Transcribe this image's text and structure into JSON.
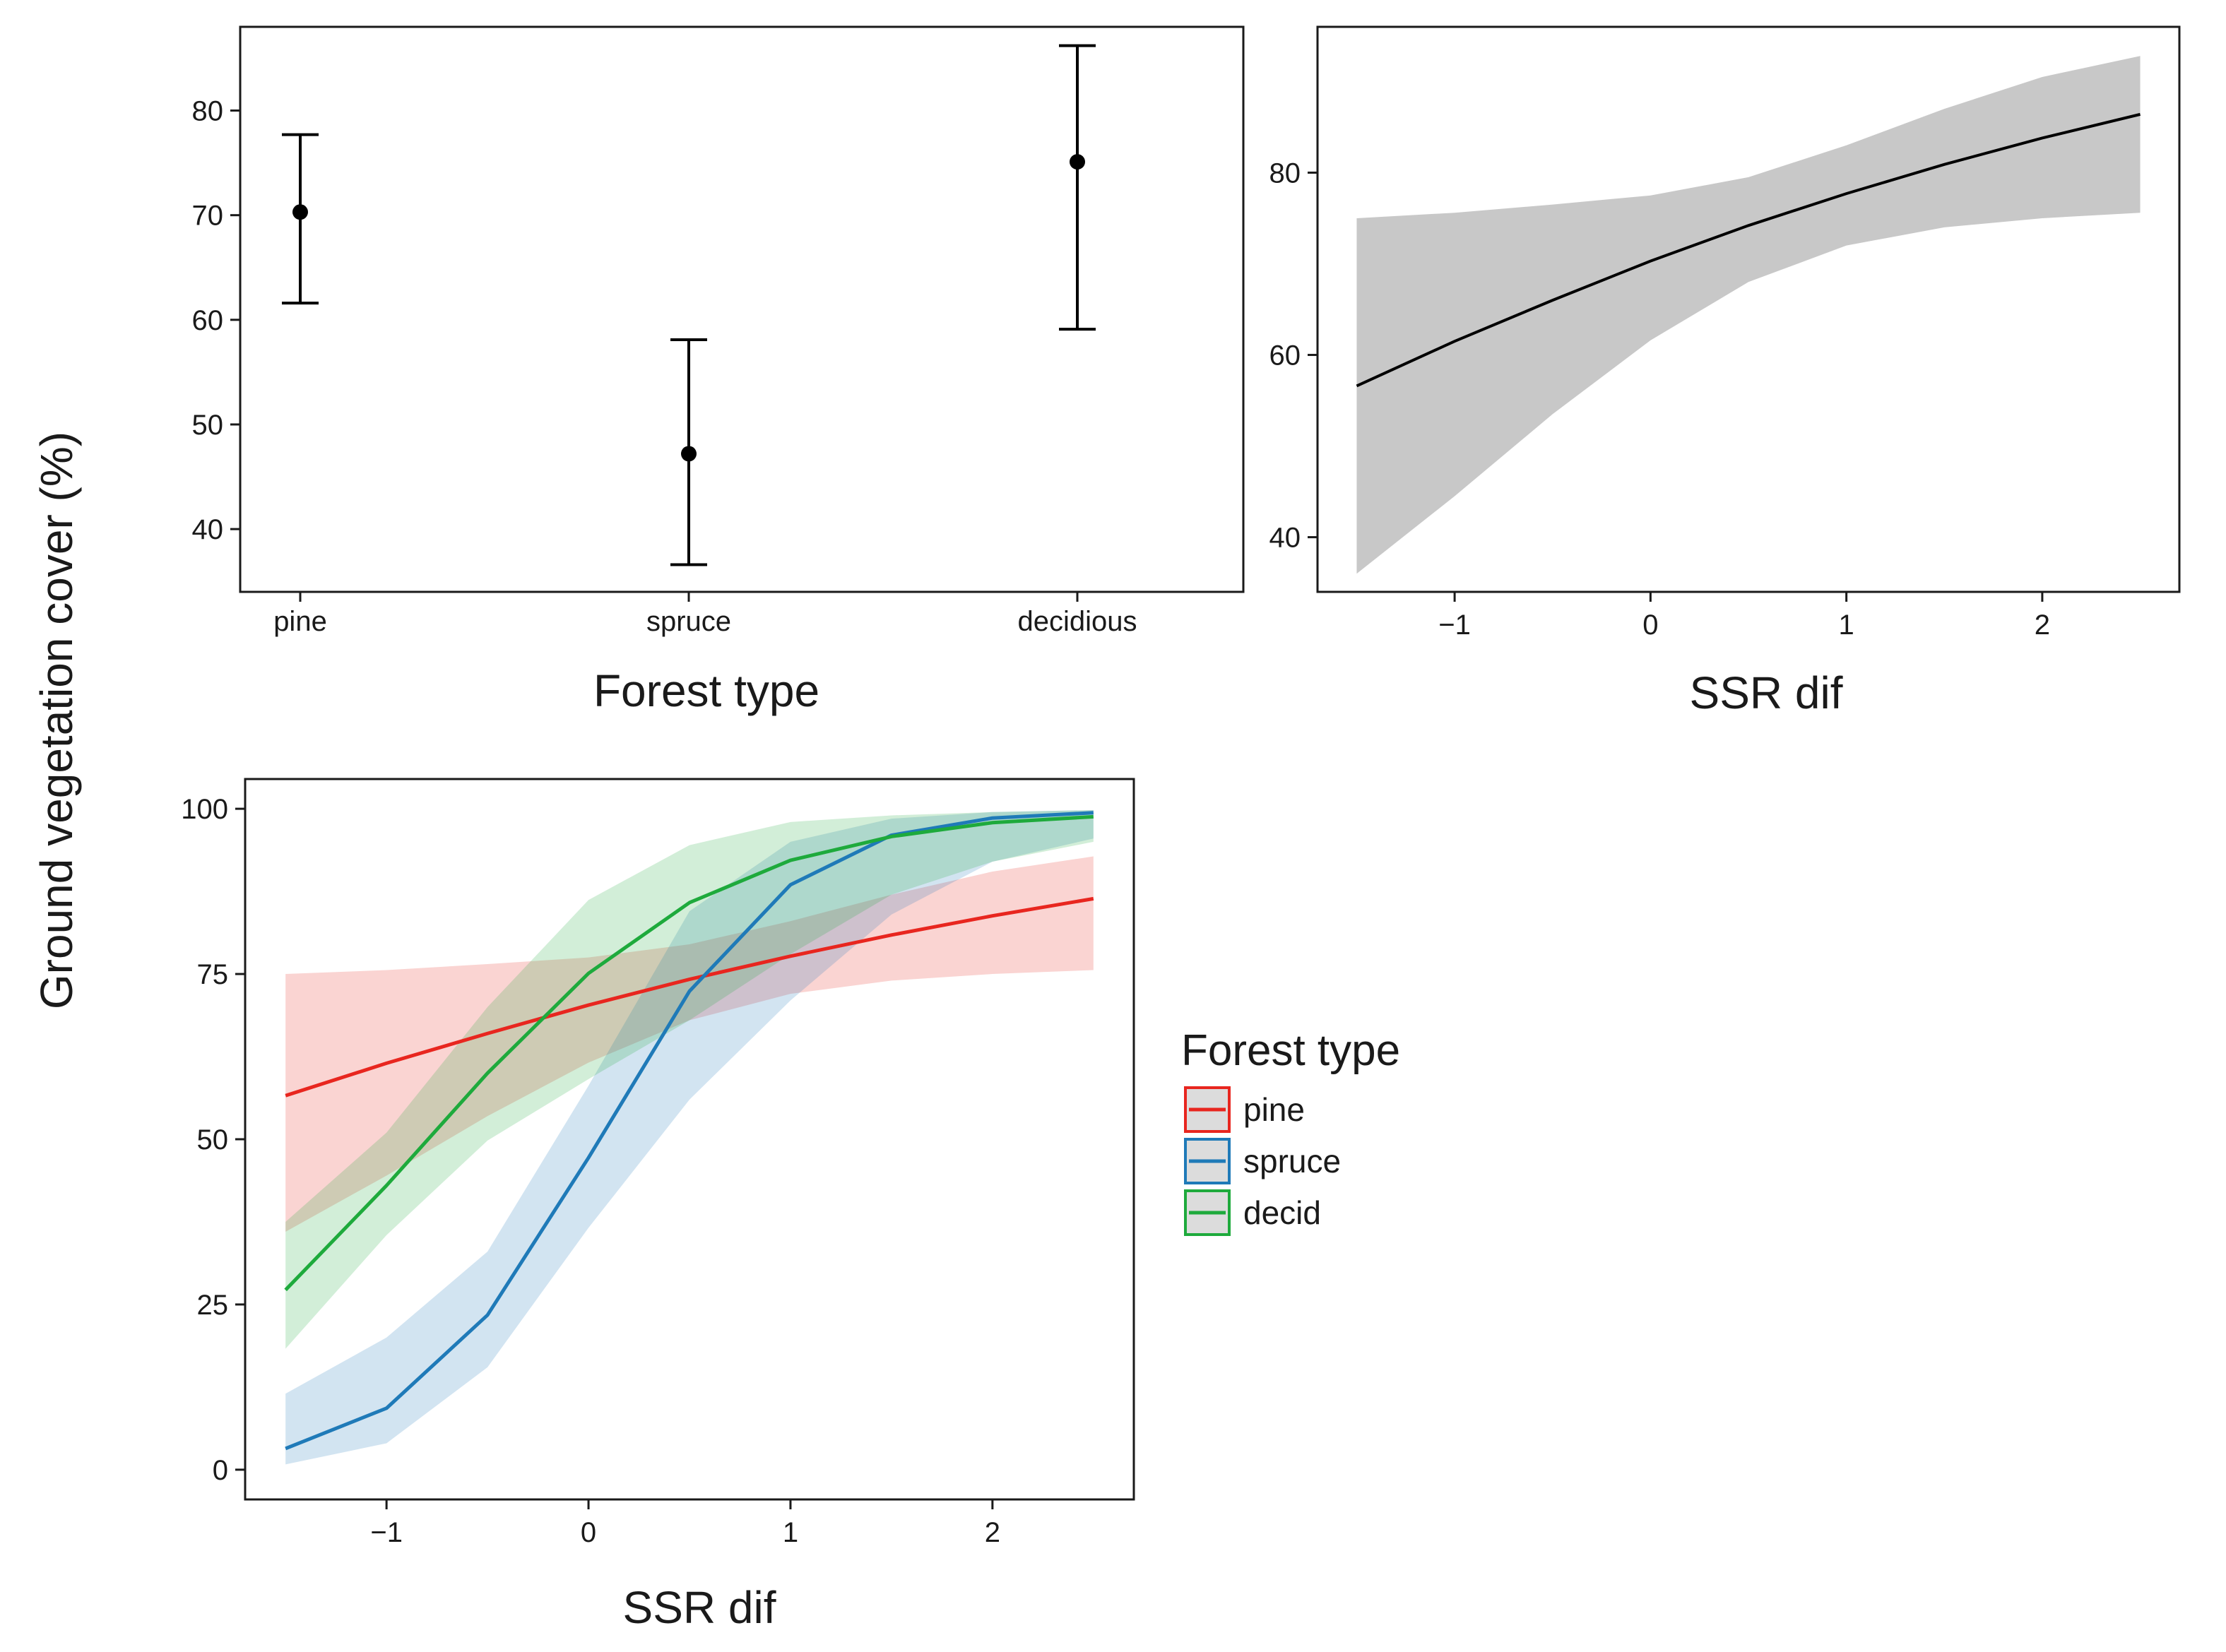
{
  "shared_ylabel": "Ground vegetation cover (%)",
  "chart_data": [
    {
      "id": "a",
      "type": "errorbar",
      "categories": [
        "pine",
        "spruce",
        "decidious"
      ],
      "values": [
        70.3,
        47.2,
        75.1
      ],
      "lower": [
        61.6,
        36.6,
        59.1
      ],
      "upper": [
        77.7,
        58.1,
        86.2
      ],
      "xlabel": "Forest type",
      "ylabel": "",
      "ylim": [
        34.0,
        88.0
      ],
      "yticks": [
        40,
        50,
        60,
        70,
        80
      ]
    },
    {
      "id": "b",
      "type": "line",
      "x": [
        -1.5,
        -1.0,
        -0.5,
        0.0,
        0.5,
        1.0,
        1.5,
        2.0,
        2.5
      ],
      "y": [
        56.6,
        61.5,
        66.0,
        70.3,
        74.2,
        77.7,
        80.9,
        83.8,
        86.4
      ],
      "lower": [
        36.0,
        44.5,
        53.5,
        61.6,
        68.0,
        72.0,
        74.0,
        75.0,
        75.6
      ],
      "upper": [
        75.0,
        75.6,
        76.5,
        77.5,
        79.5,
        83.0,
        87.0,
        90.5,
        92.8
      ],
      "band_color": "#c8c8c8",
      "line_color": "#000000",
      "xlabel": "SSR dif",
      "ylabel": "",
      "xlim": [
        -1.7,
        2.7
      ],
      "ylim": [
        34.0,
        96.0
      ],
      "xticks": [
        -1,
        0,
        1,
        2
      ],
      "xtick_labels": [
        "−1",
        "0",
        "1",
        "2"
      ],
      "yticks": [
        40,
        60,
        80
      ]
    },
    {
      "id": "c",
      "type": "line",
      "x": [
        -1.5,
        -1.0,
        -0.5,
        0.0,
        0.5,
        1.0,
        1.5,
        2.0,
        2.5
      ],
      "series": [
        {
          "name": "pine",
          "color": "#e8261f",
          "y": [
            56.6,
            61.5,
            66.0,
            70.3,
            74.2,
            77.7,
            80.9,
            83.8,
            86.4
          ],
          "lower": [
            36.0,
            44.5,
            53.5,
            61.6,
            68.0,
            72.0,
            74.0,
            75.0,
            75.6
          ],
          "upper": [
            75.0,
            75.6,
            76.5,
            77.5,
            79.5,
            83.0,
            87.0,
            90.5,
            92.8
          ]
        },
        {
          "name": "spruce",
          "color": "#1f7ab8",
          "y": [
            3.2,
            9.3,
            23.4,
            47.2,
            72.4,
            88.5,
            96.0,
            98.6,
            99.4
          ],
          "lower": [
            0.8,
            4.0,
            15.5,
            36.6,
            56.0,
            71.0,
            84.0,
            92.0,
            95.5
          ],
          "upper": [
            11.5,
            20.0,
            33.0,
            58.1,
            84.5,
            95.0,
            98.5,
            99.5,
            99.8
          ]
        },
        {
          "name": "decid",
          "color": "#1eaa3c",
          "y": [
            27.2,
            43.0,
            60.0,
            75.1,
            85.8,
            92.2,
            95.8,
            97.9,
            98.8
          ],
          "lower": [
            18.3,
            35.5,
            49.8,
            59.1,
            68.0,
            78.0,
            87.0,
            92.0,
            95.0
          ],
          "upper": [
            37.5,
            51.0,
            70.0,
            86.2,
            94.5,
            98.0,
            99.0,
            99.5,
            99.8
          ]
        }
      ],
      "xlabel": "SSR dif",
      "ylabel": "",
      "xlim": [
        -1.7,
        2.7
      ],
      "ylim": [
        -4.5,
        104.5
      ],
      "xticks": [
        -1,
        0,
        1,
        2
      ],
      "xtick_labels": [
        "−1",
        "0",
        "1",
        "2"
      ],
      "yticks": [
        0,
        25,
        50,
        75,
        100
      ],
      "legend": {
        "title": "Forest type",
        "position": "right",
        "labels": [
          "pine",
          "spruce",
          "decid"
        ]
      }
    }
  ]
}
